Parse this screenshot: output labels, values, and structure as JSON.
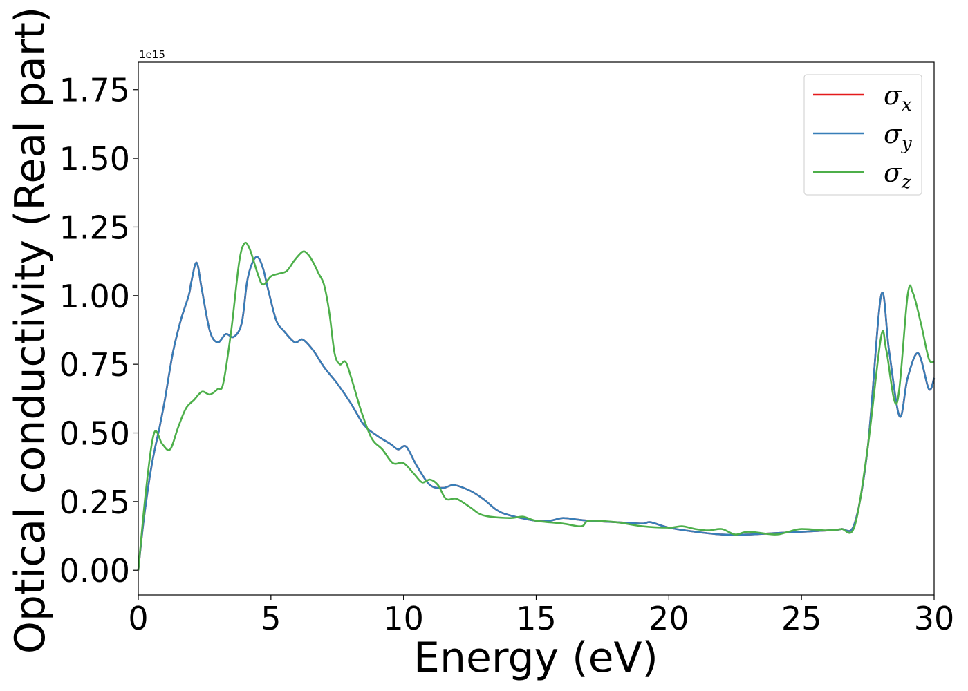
{
  "chart_data": {
    "type": "line",
    "title": "",
    "xlabel": "Energy (eV)",
    "ylabel": "Optical conductivity (Real part)",
    "y_offset_text": "1e15",
    "xlim": [
      0,
      30
    ],
    "ylim": [
      -0.09,
      1.85
    ],
    "xticks": [
      0,
      5,
      10,
      15,
      20,
      25,
      30
    ],
    "xtick_labels": [
      "0",
      "5",
      "10",
      "15",
      "20",
      "25",
      "30"
    ],
    "yticks": [
      0.0,
      0.25,
      0.5,
      0.75,
      1.0,
      1.25,
      1.5,
      1.75
    ],
    "ytick_labels": [
      "0.00",
      "0.25",
      "0.50",
      "0.75",
      "1.00",
      "1.25",
      "1.50",
      "1.75"
    ],
    "grid": false,
    "legend_position": "top-right",
    "series": [
      {
        "name": "σ",
        "subscript": "x",
        "color": "#e41a1c",
        "x": [
          0,
          0.2,
          0.5,
          0.8,
          1.0,
          1.3,
          1.6,
          1.9,
          2.0,
          2.2,
          2.4,
          2.7,
          3.0,
          3.3,
          3.6,
          3.9,
          4.1,
          4.3,
          4.5,
          4.7,
          4.9,
          5.2,
          5.5,
          5.9,
          6.2,
          6.6,
          7.0,
          7.5,
          8.0,
          8.5,
          9.0,
          9.5,
          9.8,
          10.1,
          10.5,
          11.0,
          11.5,
          11.9,
          12.5,
          13.0,
          13.5,
          14.0,
          15.0,
          15.5,
          16.0,
          16.5,
          17.0,
          18.0,
          19.0,
          19.3,
          20.0,
          21.0,
          22.0,
          23.0,
          24.0,
          25.0,
          26.0,
          26.5,
          27.0,
          27.5,
          28.0,
          28.3,
          28.7,
          29.0,
          29.4,
          29.8,
          30.0
        ],
        "y": [
          0.0,
          0.18,
          0.38,
          0.52,
          0.62,
          0.79,
          0.91,
          1.0,
          1.05,
          1.12,
          1.02,
          0.87,
          0.83,
          0.86,
          0.85,
          0.9,
          1.05,
          1.12,
          1.14,
          1.1,
          1.02,
          0.91,
          0.87,
          0.83,
          0.84,
          0.8,
          0.74,
          0.68,
          0.61,
          0.53,
          0.49,
          0.46,
          0.44,
          0.45,
          0.38,
          0.31,
          0.3,
          0.31,
          0.29,
          0.26,
          0.22,
          0.2,
          0.18,
          0.18,
          0.19,
          0.185,
          0.18,
          0.175,
          0.17,
          0.175,
          0.155,
          0.14,
          0.13,
          0.13,
          0.135,
          0.14,
          0.145,
          0.15,
          0.17,
          0.45,
          1.0,
          0.8,
          0.56,
          0.7,
          0.79,
          0.66,
          0.7
        ]
      },
      {
        "name": "σ",
        "subscript": "y",
        "color": "#377eb8",
        "x": [
          0,
          0.2,
          0.5,
          0.8,
          1.0,
          1.3,
          1.6,
          1.9,
          2.0,
          2.2,
          2.4,
          2.7,
          3.0,
          3.3,
          3.6,
          3.9,
          4.1,
          4.3,
          4.5,
          4.7,
          4.9,
          5.2,
          5.5,
          5.9,
          6.2,
          6.6,
          7.0,
          7.5,
          8.0,
          8.5,
          9.0,
          9.5,
          9.8,
          10.1,
          10.5,
          11.0,
          11.5,
          11.9,
          12.5,
          13.0,
          13.5,
          14.0,
          15.0,
          15.5,
          16.0,
          16.5,
          17.0,
          18.0,
          19.0,
          19.3,
          20.0,
          21.0,
          22.0,
          23.0,
          24.0,
          25.0,
          26.0,
          26.5,
          27.0,
          27.5,
          28.0,
          28.3,
          28.7,
          29.0,
          29.4,
          29.8,
          30.0
        ],
        "y": [
          0.0,
          0.18,
          0.38,
          0.52,
          0.62,
          0.79,
          0.91,
          1.0,
          1.05,
          1.12,
          1.02,
          0.87,
          0.83,
          0.86,
          0.85,
          0.9,
          1.05,
          1.12,
          1.14,
          1.1,
          1.02,
          0.91,
          0.87,
          0.83,
          0.84,
          0.8,
          0.74,
          0.68,
          0.61,
          0.53,
          0.49,
          0.46,
          0.44,
          0.45,
          0.38,
          0.31,
          0.3,
          0.31,
          0.29,
          0.26,
          0.22,
          0.2,
          0.18,
          0.18,
          0.19,
          0.185,
          0.18,
          0.175,
          0.17,
          0.175,
          0.155,
          0.14,
          0.13,
          0.13,
          0.135,
          0.14,
          0.145,
          0.15,
          0.17,
          0.45,
          1.0,
          0.8,
          0.56,
          0.7,
          0.79,
          0.66,
          0.7
        ]
      },
      {
        "name": "σ",
        "subscript": "z",
        "color": "#4daf4a",
        "x": [
          0,
          0.3,
          0.6,
          0.9,
          1.2,
          1.5,
          1.8,
          2.1,
          2.4,
          2.7,
          3.0,
          3.2,
          3.5,
          3.8,
          4.0,
          4.2,
          4.5,
          4.7,
          5.0,
          5.3,
          5.6,
          5.9,
          6.2,
          6.4,
          6.6,
          6.8,
          7.0,
          7.2,
          7.4,
          7.6,
          7.8,
          8.0,
          8.4,
          8.8,
          9.2,
          9.6,
          10.0,
          10.4,
          10.7,
          11.0,
          11.3,
          11.6,
          12.0,
          12.5,
          13.0,
          14.0,
          14.5,
          15.0,
          16.0,
          16.7,
          17.0,
          18.0,
          19.0,
          20.0,
          20.5,
          21.0,
          21.5,
          22.0,
          22.5,
          23.0,
          24.0,
          24.5,
          25.0,
          26.0,
          26.5,
          27.0,
          27.5,
          28.0,
          28.2,
          28.6,
          29.0,
          29.2,
          29.5,
          29.8,
          30.0
        ],
        "y": [
          0.0,
          0.3,
          0.5,
          0.46,
          0.44,
          0.52,
          0.59,
          0.62,
          0.65,
          0.64,
          0.66,
          0.68,
          0.87,
          1.12,
          1.19,
          1.17,
          1.08,
          1.04,
          1.07,
          1.08,
          1.09,
          1.13,
          1.16,
          1.15,
          1.12,
          1.08,
          1.04,
          0.94,
          0.79,
          0.75,
          0.76,
          0.71,
          0.58,
          0.48,
          0.44,
          0.39,
          0.39,
          0.35,
          0.32,
          0.33,
          0.31,
          0.26,
          0.26,
          0.23,
          0.2,
          0.19,
          0.195,
          0.18,
          0.17,
          0.16,
          0.18,
          0.175,
          0.16,
          0.155,
          0.16,
          0.15,
          0.145,
          0.15,
          0.13,
          0.14,
          0.13,
          0.14,
          0.15,
          0.145,
          0.15,
          0.16,
          0.45,
          0.85,
          0.8,
          0.61,
          1.0,
          1.01,
          0.9,
          0.77,
          0.76
        ]
      }
    ]
  }
}
